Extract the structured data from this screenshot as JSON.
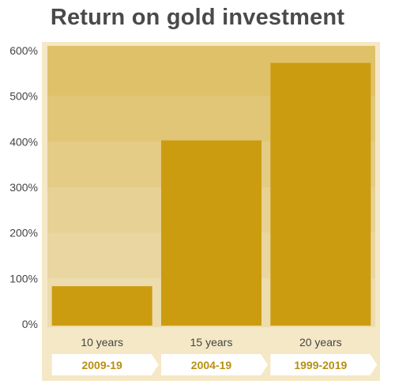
{
  "chart_data": {
    "type": "bar",
    "title": "Return on gold investment",
    "categories": [
      "10 years",
      "15 years",
      "20 years"
    ],
    "periods": [
      "2009-19",
      "2004-19",
      "1999-2019"
    ],
    "values": [
      83,
      403,
      573
    ],
    "ylim": [
      0,
      600
    ],
    "yticks": [
      0,
      100,
      200,
      300,
      400,
      500,
      600
    ],
    "ytick_labels": [
      "0%",
      "100%",
      "200%",
      "300%",
      "400%",
      "500%",
      "600%"
    ],
    "grid": "horizontal bands",
    "colors": {
      "bar": "#cc9c10",
      "frame": "#f5e8c6",
      "period_text": "#b8900f",
      "category_text": "#444444",
      "axis_text": "#444444",
      "title": "#4a4a4a"
    }
  }
}
